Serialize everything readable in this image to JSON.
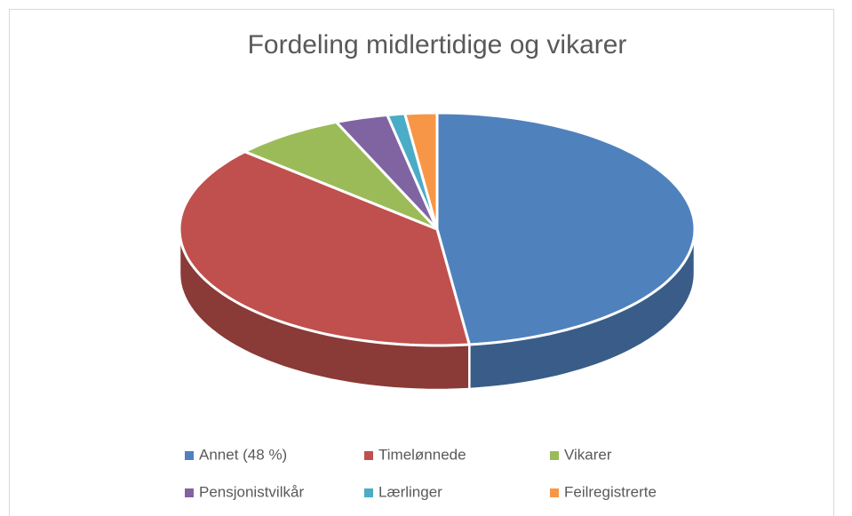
{
  "chart_data": {
    "type": "pie",
    "title": "Fordeling midlertidige og vikarer",
    "categories": [
      "Annet (48 %)",
      "Timelønnede",
      "Vikarer",
      "Pensjonistvilkår",
      "Lærlinger",
      "Feilregistrerte"
    ],
    "values": [
      48,
      38.6,
      7,
      3.3,
      1.1,
      2
    ],
    "colors": [
      "#4f81bd",
      "#c0504d",
      "#9bbb59",
      "#8064a2",
      "#4bacc6",
      "#f79646"
    ],
    "legend": "bottom"
  }
}
